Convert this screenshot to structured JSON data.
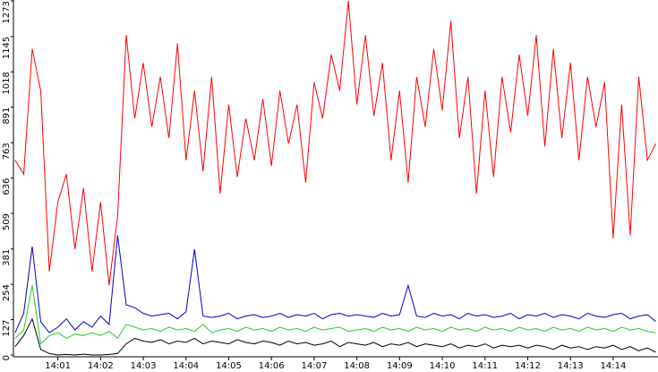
{
  "chart_data": {
    "type": "line",
    "x": [
      0,
      0.2,
      0.4,
      0.6,
      0.8,
      1,
      1.2,
      1.4,
      1.6,
      1.8,
      2,
      2.2,
      2.4,
      2.6,
      2.8,
      3,
      3.2,
      3.4,
      3.6,
      3.8,
      4,
      4.2,
      4.4,
      4.6,
      4.8,
      5,
      5.2,
      5.4,
      5.6,
      5.8,
      6,
      6.2,
      6.4,
      6.6,
      6.8,
      7,
      7.2,
      7.4,
      7.6,
      7.8,
      8,
      8.2,
      8.4,
      8.6,
      8.8,
      9,
      9.2,
      9.4,
      9.6,
      9.8,
      10,
      10.2,
      10.4,
      10.6,
      10.8,
      11,
      11.2,
      11.4,
      11.6,
      11.8,
      12,
      12.2,
      12.4,
      12.6,
      12.8,
      13,
      13.2,
      13.4,
      13.6,
      13.8,
      14,
      14.2,
      14.4,
      14.6,
      14.8,
      15
    ],
    "series": [
      {
        "color": "#ff0000",
        "values": [
          700,
          650,
          1100,
          950,
          300,
          550,
          650,
          380,
          600,
          300,
          550,
          250,
          500,
          1150,
          850,
          1050,
          820,
          1000,
          780,
          1120,
          700,
          950,
          660,
          1000,
          580,
          900,
          640,
          850,
          700,
          920,
          680,
          950,
          760,
          900,
          620,
          980,
          850,
          1080,
          950,
          1273,
          900,
          1150,
          860,
          1050,
          700,
          950,
          620,
          1000,
          820,
          1100,
          880,
          1200,
          780,
          1000,
          580,
          950,
          640,
          1000,
          800,
          1080,
          860,
          1150,
          750,
          1100,
          780,
          1050,
          700,
          1000,
          820,
          980,
          420,
          900,
          430,
          1000,
          700,
          760
        ]
      },
      {
        "color": "#0000cc",
        "values": [
          80,
          150,
          390,
          120,
          80,
          100,
          130,
          90,
          120,
          100,
          140,
          110,
          430,
          180,
          170,
          150,
          140,
          145,
          150,
          130,
          155,
          380,
          140,
          135,
          140,
          150,
          130,
          140,
          145,
          135,
          140,
          150,
          135,
          145,
          140,
          150,
          130,
          145,
          150,
          140,
          145,
          140,
          135,
          150,
          140,
          145,
          250,
          140,
          135,
          150,
          140,
          145,
          130,
          150,
          140,
          145,
          135,
          140,
          150,
          130,
          145,
          140,
          150,
          135,
          145,
          140,
          130,
          150,
          140,
          135,
          145,
          150,
          130,
          140,
          145,
          120
        ]
      },
      {
        "color": "#22cc22",
        "values": [
          60,
          90,
          250,
          40,
          70,
          80,
          60,
          75,
          70,
          80,
          70,
          85,
          60,
          110,
          100,
          90,
          95,
          85,
          100,
          90,
          95,
          85,
          110,
          80,
          90,
          95,
          85,
          100,
          90,
          95,
          85,
          100,
          90,
          95,
          85,
          100,
          90,
          95,
          100,
          85,
          90,
          95,
          85,
          100,
          90,
          95,
          85,
          100,
          90,
          95,
          85,
          100,
          90,
          95,
          85,
          100,
          90,
          95,
          85,
          100,
          90,
          95,
          85,
          100,
          90,
          95,
          85,
          100,
          90,
          95,
          85,
          100,
          90,
          95,
          85,
          80
        ]
      },
      {
        "color": "#000000",
        "values": [
          30,
          70,
          130,
          20,
          5,
          0,
          2,
          0,
          3,
          0,
          0,
          2,
          5,
          40,
          60,
          50,
          45,
          55,
          40,
          50,
          45,
          60,
          40,
          50,
          45,
          40,
          55,
          45,
          40,
          50,
          45,
          35,
          50,
          40,
          45,
          35,
          40,
          50,
          30,
          45,
          40,
          35,
          45,
          30,
          40,
          35,
          45,
          30,
          40,
          35,
          30,
          40,
          25,
          35,
          30,
          40,
          25,
          35,
          30,
          35,
          25,
          35,
          30,
          20,
          35,
          25,
          30,
          20,
          30,
          25,
          35,
          20,
          30,
          15,
          25,
          10
        ]
      }
    ],
    "xlim": [
      -0.04,
      15.05
    ],
    "xticks": [
      {
        "value": 1,
        "label": "14:01"
      },
      {
        "value": 2,
        "label": "14:02"
      },
      {
        "value": 3,
        "label": "14:03"
      },
      {
        "value": 4,
        "label": "14:04"
      },
      {
        "value": 5,
        "label": "14:05"
      },
      {
        "value": 6,
        "label": "14:06"
      },
      {
        "value": 7,
        "label": "14:07"
      },
      {
        "value": 8,
        "label": "14:08"
      },
      {
        "value": 9,
        "label": "14:09"
      },
      {
        "value": 10,
        "label": "14:10"
      },
      {
        "value": 11,
        "label": "14:11"
      },
      {
        "value": 12,
        "label": "14:12"
      },
      {
        "value": 13,
        "label": "14:13"
      },
      {
        "value": 14,
        "label": "14:14"
      }
    ],
    "ylim": [
      0,
      1273
    ],
    "yticks": [
      0,
      127,
      254,
      381,
      509,
      636,
      763,
      891,
      1018,
      1145,
      1273
    ]
  }
}
